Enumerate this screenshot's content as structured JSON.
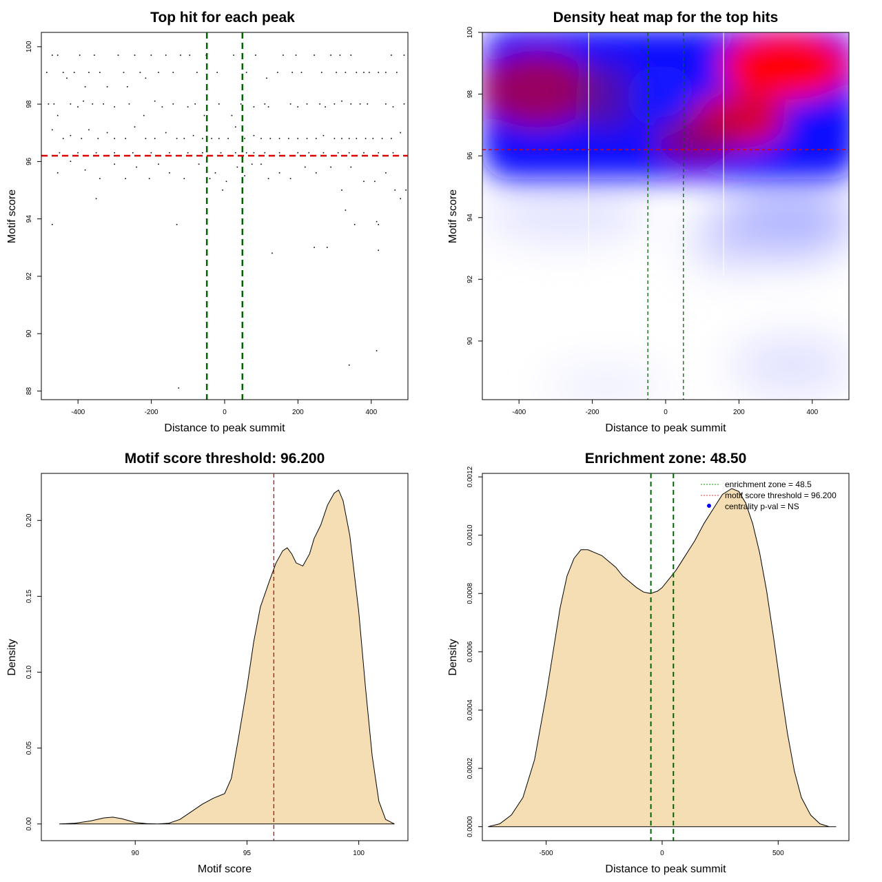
{
  "chart_data": [
    {
      "type": "scatter",
      "title": "Top hit for each peak",
      "xlabel": "Distance to peak summit",
      "ylabel": "Motif score",
      "xlim": [
        -500,
        500
      ],
      "ylim": [
        87.7,
        100.5
      ],
      "xticks": [
        "-400",
        "-200",
        "0",
        "200",
        "400"
      ],
      "yticks": [
        "88",
        "90",
        "92",
        "94",
        "96",
        "98",
        "100"
      ],
      "hlines": [
        {
          "y": 96.2,
          "color": "#dd0000",
          "style": "dashed"
        }
      ],
      "vlines": [
        {
          "x": -48.5,
          "color": "#006400",
          "style": "dashed"
        },
        {
          "x": 48.5,
          "color": "#006400",
          "style": "dashed"
        }
      ],
      "point_color": "#000000",
      "points": [
        [
          -485,
          99.1
        ],
        [
          -470,
          99.7
        ],
        [
          -455,
          99.7
        ],
        [
          -440,
          99.1
        ],
        [
          -430,
          98.9
        ],
        [
          -410,
          99.1
        ],
        [
          -395,
          99.7
        ],
        [
          -380,
          98.6
        ],
        [
          -370,
          99.1
        ],
        [
          -355,
          99.7
        ],
        [
          -340,
          99.1
        ],
        [
          -320,
          98.6
        ],
        [
          -290,
          99.7
        ],
        [
          -275,
          99.1
        ],
        [
          -265,
          98.6
        ],
        [
          -245,
          99.7
        ],
        [
          -230,
          99.1
        ],
        [
          -215,
          98.9
        ],
        [
          -200,
          99.7
        ],
        [
          -180,
          99.1
        ],
        [
          -160,
          99.7
        ],
        [
          -140,
          99.1
        ],
        [
          -120,
          99.7
        ],
        [
          -95,
          99.7
        ],
        [
          -75,
          99.1
        ],
        [
          -50,
          99.7
        ],
        [
          -20,
          99.1
        ],
        [
          25,
          99.7
        ],
        [
          60,
          99.1
        ],
        [
          85,
          99.7
        ],
        [
          115,
          98.9
        ],
        [
          145,
          99.1
        ],
        [
          160,
          99.7
        ],
        [
          185,
          99.1
        ],
        [
          195,
          99.7
        ],
        [
          210,
          99.1
        ],
        [
          245,
          99.7
        ],
        [
          265,
          99.1
        ],
        [
          290,
          99.7
        ],
        [
          305,
          99.1
        ],
        [
          315,
          99.7
        ],
        [
          330,
          99.1
        ],
        [
          345,
          99.7
        ],
        [
          360,
          99.1
        ],
        [
          380,
          99.1
        ],
        [
          395,
          99.1
        ],
        [
          420,
          99.1
        ],
        [
          440,
          99.1
        ],
        [
          455,
          99.7
        ],
        [
          470,
          99.1
        ],
        [
          490,
          99.7
        ],
        [
          -480,
          98.0
        ],
        [
          -465,
          98.0
        ],
        [
          -455,
          97.6
        ],
        [
          -420,
          98.0
        ],
        [
          -400,
          97.9
        ],
        [
          -385,
          98.1
        ],
        [
          -360,
          98.0
        ],
        [
          -330,
          98.0
        ],
        [
          -300,
          97.9
        ],
        [
          -260,
          98.0
        ],
        [
          -220,
          97.6
        ],
        [
          -190,
          98.1
        ],
        [
          -170,
          97.9
        ],
        [
          -140,
          98.0
        ],
        [
          -100,
          97.9
        ],
        [
          -80,
          98.0
        ],
        [
          -55,
          97.6
        ],
        [
          -15,
          98.0
        ],
        [
          20,
          97.6
        ],
        [
          45,
          98.0
        ],
        [
          80,
          97.9
        ],
        [
          110,
          98.0
        ],
        [
          120,
          97.9
        ],
        [
          180,
          98.0
        ],
        [
          200,
          97.9
        ],
        [
          225,
          98.0
        ],
        [
          260,
          98.0
        ],
        [
          275,
          97.9
        ],
        [
          300,
          98.0
        ],
        [
          320,
          98.1
        ],
        [
          345,
          98.0
        ],
        [
          370,
          98.0
        ],
        [
          390,
          98.0
        ],
        [
          440,
          98.0
        ],
        [
          460,
          97.9
        ],
        [
          490,
          98.0
        ],
        [
          -470,
          97.1
        ],
        [
          -440,
          96.8
        ],
        [
          -420,
          96.9
        ],
        [
          -390,
          96.8
        ],
        [
          -370,
          97.1
        ],
        [
          -345,
          96.8
        ],
        [
          -320,
          97.0
        ],
        [
          -300,
          96.8
        ],
        [
          -270,
          96.8
        ],
        [
          -245,
          97.2
        ],
        [
          -215,
          96.8
        ],
        [
          -190,
          96.8
        ],
        [
          -160,
          97.0
        ],
        [
          -130,
          96.8
        ],
        [
          -110,
          96.8
        ],
        [
          -85,
          96.9
        ],
        [
          -60,
          96.8
        ],
        [
          -35,
          96.8
        ],
        [
          -15,
          96.8
        ],
        [
          10,
          96.8
        ],
        [
          30,
          97.2
        ],
        [
          55,
          96.8
        ],
        [
          80,
          96.9
        ],
        [
          100,
          96.8
        ],
        [
          125,
          96.8
        ],
        [
          150,
          96.8
        ],
        [
          175,
          96.8
        ],
        [
          200,
          96.8
        ],
        [
          225,
          96.8
        ],
        [
          250,
          96.8
        ],
        [
          270,
          96.9
        ],
        [
          300,
          96.8
        ],
        [
          320,
          96.8
        ],
        [
          340,
          96.8
        ],
        [
          360,
          96.8
        ],
        [
          385,
          96.8
        ],
        [
          405,
          96.8
        ],
        [
          430,
          96.8
        ],
        [
          455,
          96.8
        ],
        [
          480,
          97.0
        ],
        [
          -450,
          96.3
        ],
        [
          -400,
          96.3
        ],
        [
          -350,
          96.3
        ],
        [
          -300,
          96.3
        ],
        [
          -250,
          96.3
        ],
        [
          -200,
          96.3
        ],
        [
          -150,
          96.3
        ],
        [
          -100,
          96.3
        ],
        [
          -60,
          96.3
        ],
        [
          -10,
          96.3
        ],
        [
          30,
          96.3
        ],
        [
          60,
          96.3
        ],
        [
          80,
          96.3
        ],
        [
          110,
          96.3
        ],
        [
          150,
          96.3
        ],
        [
          200,
          96.3
        ],
        [
          230,
          96.3
        ],
        [
          270,
          96.3
        ],
        [
          310,
          96.3
        ],
        [
          340,
          96.3
        ],
        [
          380,
          96.3
        ],
        [
          420,
          96.3
        ],
        [
          460,
          96.3
        ],
        [
          -455,
          95.6
        ],
        [
          -420,
          96.0
        ],
        [
          -380,
          95.7
        ],
        [
          -340,
          95.4
        ],
        [
          -300,
          95.9
        ],
        [
          -270,
          95.4
        ],
        [
          -240,
          95.8
        ],
        [
          -205,
          95.4
        ],
        [
          -180,
          95.9
        ],
        [
          -150,
          95.6
        ],
        [
          -110,
          95.4
        ],
        [
          -70,
          95.9
        ],
        [
          -40,
          95.4
        ],
        [
          -25,
          95.6
        ],
        [
          5,
          95.3
        ],
        [
          35,
          95.8
        ],
        [
          55,
          95.5
        ],
        [
          75,
          95.9
        ],
        [
          100,
          95.9
        ],
        [
          120,
          95.4
        ],
        [
          150,
          95.6
        ],
        [
          180,
          95.4
        ],
        [
          220,
          95.8
        ],
        [
          250,
          95.6
        ],
        [
          290,
          95.8
        ],
        [
          320,
          95.0
        ],
        [
          345,
          95.8
        ],
        [
          380,
          95.3
        ],
        [
          410,
          95.3
        ],
        [
          440,
          95.6
        ],
        [
          465,
          95.0
        ],
        [
          480,
          94.7
        ],
        [
          495,
          95.0
        ],
        [
          -350,
          94.7
        ],
        [
          -470,
          93.8
        ],
        [
          -130,
          93.8
        ],
        [
          -5,
          95.0
        ],
        [
          330,
          94.3
        ],
        [
          355,
          93.8
        ],
        [
          415,
          93.9
        ],
        [
          420,
          93.8
        ],
        [
          245,
          93.0
        ],
        [
          280,
          93.0
        ],
        [
          130,
          92.8
        ],
        [
          420,
          92.9
        ],
        [
          340,
          88.9
        ],
        [
          415,
          89.4
        ],
        [
          -125,
          88.1
        ]
      ]
    },
    {
      "type": "heatmap",
      "title": "Density heat map for the top hits",
      "xlabel": "Distance to peak summit",
      "ylabel": "Motif score",
      "xlim": [
        -500,
        500
      ],
      "ylim": [
        88.1,
        100.0
      ],
      "xticks": [
        "-400",
        "-200",
        "0",
        "200",
        "400"
      ],
      "yticks": [
        "90",
        "92",
        "94",
        "96",
        "98",
        "100"
      ],
      "color_low": "#ffffff",
      "color_mid": "#0000ff",
      "color_high": "#ff0000",
      "hlines": [
        {
          "y": 96.2,
          "color": "#dd0000",
          "style": "dashed"
        }
      ],
      "vlines": [
        {
          "x": -48.5,
          "color": "#006400",
          "style": "dashed"
        },
        {
          "x": 48.5,
          "color": "#006400",
          "style": "dashed"
        }
      ],
      "white_lines_x": [
        -210,
        158
      ]
    },
    {
      "type": "area",
      "title": "Motif score threshold: 96.200",
      "xlabel": "Motif score",
      "ylabel": "Density",
      "xlim": [
        85.8,
        102.2
      ],
      "ylim": [
        -0.011,
        0.231
      ],
      "xticks": [
        "90",
        "95",
        "100"
      ],
      "yticks": [
        "0.00",
        "0.05",
        "0.10",
        "0.15",
        "0.20"
      ],
      "fill": "#f5deb3",
      "vlines": [
        {
          "x": 96.2,
          "color": "#dd0000",
          "style": "dashed"
        }
      ],
      "x": [
        86.6,
        87.3,
        88.0,
        88.6,
        89.0,
        89.4,
        90.0,
        90.5,
        91.0,
        91.5,
        92.0,
        92.5,
        93.0,
        93.5,
        94.0,
        94.3,
        94.6,
        95.0,
        95.3,
        95.6,
        96.0,
        96.3,
        96.6,
        96.8,
        97.0,
        97.2,
        97.5,
        97.8,
        98.0,
        98.3,
        98.6,
        98.9,
        99.1,
        99.3,
        99.6,
        100.0,
        100.3,
        100.6,
        100.9,
        101.2,
        101.6
      ],
      "y": [
        0.0,
        0.0005,
        0.002,
        0.004,
        0.0045,
        0.0035,
        0.001,
        0.0002,
        0.0,
        0.0005,
        0.003,
        0.008,
        0.013,
        0.017,
        0.02,
        0.03,
        0.055,
        0.09,
        0.12,
        0.143,
        0.16,
        0.172,
        0.18,
        0.182,
        0.178,
        0.172,
        0.17,
        0.178,
        0.188,
        0.197,
        0.21,
        0.218,
        0.22,
        0.213,
        0.19,
        0.14,
        0.09,
        0.045,
        0.015,
        0.003,
        0.0
      ]
    },
    {
      "type": "area",
      "title": "Enrichment zone: 48.50",
      "xlabel": "Distance to peak summit",
      "ylabel": "Density",
      "xlim": [
        -775,
        805
      ],
      "ylim": [
        -4.8e-05,
        0.001212
      ],
      "xticks": [
        "-500",
        "0",
        "500"
      ],
      "yticks": [
        "0.0000",
        "0.0002",
        "0.0004",
        "0.0006",
        "0.0008",
        "0.0010",
        "0.0012"
      ],
      "fill": "#f5deb3",
      "vlines": [
        {
          "x": -48.5,
          "color": "#006400",
          "style": "dashed"
        },
        {
          "x": 48.5,
          "color": "#006400",
          "style": "dashed"
        }
      ],
      "x": [
        -750,
        -700,
        -650,
        -600,
        -550,
        -500,
        -470,
        -440,
        -410,
        -380,
        -350,
        -320,
        -290,
        -260,
        -230,
        -200,
        -170,
        -140,
        -110,
        -80,
        -50,
        -20,
        0,
        30,
        60,
        100,
        140,
        180,
        220,
        260,
        300,
        330,
        360,
        390,
        420,
        450,
        480,
        510,
        540,
        570,
        600,
        640,
        680,
        720,
        750
      ],
      "y": [
        0.0,
        1e-05,
        4e-05,
        0.0001,
        0.00023,
        0.00045,
        0.0006,
        0.00075,
        0.00086,
        0.00092,
        0.00095,
        0.00095,
        0.00094,
        0.00093,
        0.00091,
        0.00089,
        0.00086,
        0.00084,
        0.00082,
        0.000805,
        0.0008,
        0.000808,
        0.00082,
        0.00085,
        0.00088,
        0.00093,
        0.00098,
        0.00104,
        0.00109,
        0.00114,
        0.00116,
        0.00115,
        0.00111,
        0.00104,
        0.00094,
        0.00081,
        0.00065,
        0.00048,
        0.00032,
        0.00019,
        0.0001,
        4e-05,
        1e-05,
        0.0,
        0.0
      ]
    }
  ],
  "legend": {
    "items": [
      {
        "label": "enrichment zone = 48.5",
        "color": "#00aa00",
        "kind": "line"
      },
      {
        "label": "motif score threshold = 96.200",
        "color": "#ff3333",
        "kind": "line"
      },
      {
        "label": "centrality p-val = NS",
        "color": "#0000ff",
        "kind": "point"
      }
    ]
  }
}
